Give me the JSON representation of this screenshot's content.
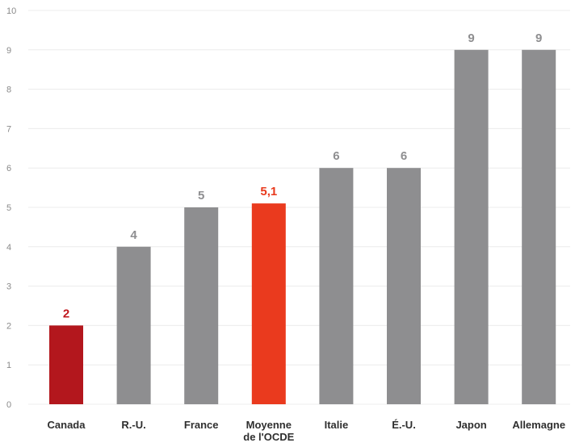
{
  "chart_data": {
    "type": "bar",
    "categories": [
      "Canada",
      "R.-U.",
      "France",
      "Moyenne\nde l'OCDE",
      "Italie",
      "É.-U.",
      "Japon",
      "Allemagne"
    ],
    "values": [
      2,
      4,
      5,
      5.1,
      6,
      6,
      9,
      9
    ],
    "data_labels": [
      "2",
      "4",
      "5",
      "5,1",
      "6",
      "6",
      "9",
      "9"
    ],
    "ylim": [
      0,
      10
    ],
    "yticks": [
      0,
      1,
      2,
      3,
      4,
      5,
      6,
      7,
      8,
      9,
      10
    ],
    "grid": true,
    "legend": "none",
    "colors": {
      "default_bar": "#8e8e90",
      "default_label": "#8e8e90",
      "Canada_bar": "#b3171d",
      "Canada_label": "#c0161c",
      "OECD_bar": "#ea3a1e",
      "OECD_label": "#e8391c",
      "grid": "#ececec",
      "tick": "#8a8a8a",
      "category": "#2f2f2f"
    },
    "bar_colors": [
      "#b3171d",
      "#8e8e90",
      "#8e8e90",
      "#ea3a1e",
      "#8e8e90",
      "#8e8e90",
      "#8e8e90",
      "#8e8e90"
    ],
    "label_colors": [
      "#c0161c",
      "#8e8e90",
      "#8e8e90",
      "#e8391c",
      "#8e8e90",
      "#8e8e90",
      "#8e8e90",
      "#8e8e90"
    ]
  }
}
